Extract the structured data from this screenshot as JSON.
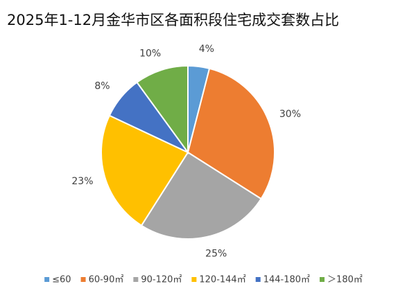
{
  "chart_data": {
    "type": "pie",
    "title": "2025年1-12月金华市区各面积段住宅成交套数占比",
    "categories": [
      "≤60",
      "60-90㎡",
      "90-120㎡",
      "120-144㎡",
      "144-180㎡",
      "＞180㎡"
    ],
    "values": [
      4,
      30,
      25,
      23,
      8,
      10
    ],
    "value_labels": [
      "4%",
      "30%",
      "25%",
      "23%",
      "8%",
      "10%"
    ],
    "colors": [
      "#5b9bd5",
      "#ed7d31",
      "#a5a5a5",
      "#ffc000",
      "#4472c4",
      "#70ad47"
    ],
    "legend": "bottom"
  }
}
